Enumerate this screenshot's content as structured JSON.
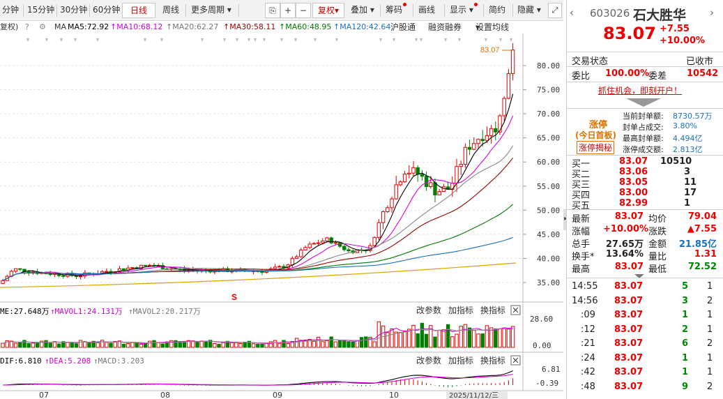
{
  "toolbar": {
    "periods": [
      "分钟",
      "15分钟",
      "30分钟",
      "60分钟",
      "日线",
      "周线",
      "更多周期"
    ],
    "active_period": "日线",
    "tools": [
      "复权",
      "叠加",
      "筹码",
      "画线",
      "显示",
      "简约",
      "隐藏"
    ]
  },
  "ma_bar": {
    "restore": "复权)",
    "ma": "MA",
    "ma5": "MA5:72.92",
    "ma10": "MA10:68.12",
    "ma20": "MA20:62.27",
    "ma30": "MA30:58.11",
    "ma60": "MA60:48.95",
    "ma120": "MA120:42.64",
    "hugutong": "沪股通",
    "rzrq": "融资融券",
    "settings": "设置均线"
  },
  "colors": {
    "up": "#e00000",
    "down": "#008000",
    "ma5": "#000000",
    "ma10": "#e000e0",
    "ma20": "#888888",
    "ma30": "#990000",
    "ma60": "#007700",
    "ma120": "#1a6fc0",
    "base": "#e0a000"
  },
  "price_chart": {
    "last_price_label": "83.07",
    "y_ticks": [
      "80.00",
      "75.00",
      "70.00",
      "65.00",
      "60.00",
      "55.00",
      "50.00",
      "45.00",
      "40.00",
      "35.00"
    ],
    "markers": "S"
  },
  "volume_panel": {
    "legend_vol": "ME:27.648万",
    "legend_mavol1": "MAVOL1:24.131万",
    "legend_mavol2": "MAVOL2:20.217万",
    "buttons": [
      "改参数",
      "加指标",
      "换指标"
    ],
    "y_ticks": [
      "28.60",
      "0.00"
    ]
  },
  "macd_panel": {
    "legend_dif": "DIF:6.810",
    "legend_dea": "DEA:5.208",
    "legend_macd": "MACD:3.203",
    "buttons": [
      "改参数",
      "加指标",
      "换指标"
    ],
    "y_ticks": [
      "6.81",
      "-0.39"
    ]
  },
  "x_axis": {
    "labels": [
      "07",
      "08",
      "09",
      "10"
    ],
    "date_label": "2025/11/12/三"
  },
  "right_panel": {
    "code": "603026",
    "name": "石大胜华",
    "price": "83.07",
    "change": "+7.55",
    "change_pct": "+10.00%",
    "status_label": "交易状态",
    "status_value": "已收市",
    "weibi_label": "委比",
    "weibi_value": "100.00%",
    "weicha_label": "委差",
    "weicha_value": "10542",
    "ad_link": "抓住机会，即刻开户！",
    "limit_up_title": "涨停",
    "limit_up_sub": "(今日首板)",
    "limit_up_btn": "涨停揭秘",
    "seal_rows": [
      {
        "label": "当前封单额:",
        "value": "8730.57万"
      },
      {
        "label": "封单占成交:",
        "value": "3.80%"
      },
      {
        "label": "最高封单额:",
        "value": "4.494亿"
      },
      {
        "label": "涨停成交额:",
        "value": "2.813亿"
      }
    ],
    "bids": [
      {
        "label": "买一",
        "price": "83.07",
        "vol": "10510"
      },
      {
        "label": "买二",
        "price": "83.06",
        "vol": "3"
      },
      {
        "label": "买三",
        "price": "83.05",
        "vol": "11"
      },
      {
        "label": "买四",
        "price": "83.00",
        "vol": "17"
      },
      {
        "label": "买五",
        "price": "82.99",
        "vol": "1"
      }
    ],
    "stats": [
      {
        "l1": "最新",
        "v1": "83.07",
        "l2": "均价",
        "v2": "79.04"
      },
      {
        "l1": "涨幅",
        "v1": "+10.00%",
        "l2": "涨跌",
        "v2": "▲7.55"
      },
      {
        "l1": "总手",
        "v1": "27.65万",
        "l2": "金额",
        "v2": "21.85亿"
      },
      {
        "l1": "换手*",
        "v1": "13.64%",
        "l2": "量比",
        "v2": "1.31"
      },
      {
        "l1": "最高",
        "v1": "83.07",
        "l2": "最低",
        "v2": "72.52"
      }
    ],
    "ticks": [
      {
        "time": "14:55",
        "price": "83.07",
        "vol": "5",
        "n": "1"
      },
      {
        "time": "14:56",
        "price": "83.07",
        "vol": "3",
        "n": "2"
      },
      {
        "time": ":09",
        "price": "83.07",
        "vol": "1",
        "n": "1"
      },
      {
        "time": ":12",
        "price": "83.07",
        "vol": "2",
        "n": "1"
      },
      {
        "time": ":21",
        "price": "83.07",
        "vol": "6",
        "n": "2"
      },
      {
        "time": ":24",
        "price": "83.07",
        "vol": "1",
        "n": "1"
      },
      {
        "time": ":42",
        "price": "83.07",
        "vol": "1",
        "n": "1"
      },
      {
        "time": ":48",
        "price": "83.07",
        "vol": "9",
        "n": "2"
      }
    ]
  }
}
